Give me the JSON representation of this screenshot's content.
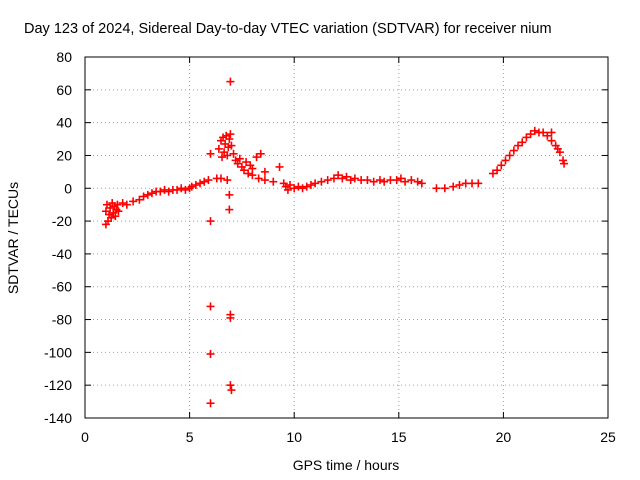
{
  "chart_data": {
    "type": "scatter",
    "title": "Day 123 of 2024, Sidereal Day-to-day VTEC variation (SDTVAR) for receiver nium",
    "xlabel": "GPS time / hours",
    "ylabel": "SDTVAR / TECUs",
    "xlim": [
      0,
      25
    ],
    "ylim": [
      -140,
      80
    ],
    "xticks": [
      0,
      5,
      10,
      15,
      20,
      25
    ],
    "yticks": [
      -140,
      -120,
      -100,
      -80,
      -60,
      -40,
      -20,
      0,
      20,
      40,
      60,
      80
    ],
    "xtick_labels": [
      "0",
      "5",
      "10",
      "15",
      "20",
      "25"
    ],
    "ytick_labels": [
      "-140",
      "-120",
      "-100",
      "-80",
      "-60",
      "-40",
      "-20",
      "0",
      "20",
      "40",
      "60",
      "80"
    ],
    "grid": true,
    "marker": "+",
    "color": "#ff0000",
    "series": [
      {
        "name": "SDTVAR",
        "points": [
          [
            1.0,
            -22
          ],
          [
            1.0,
            -14
          ],
          [
            1.05,
            -10
          ],
          [
            1.1,
            -20
          ],
          [
            1.15,
            -16
          ],
          [
            1.2,
            -12
          ],
          [
            1.25,
            -18
          ],
          [
            1.3,
            -9
          ],
          [
            1.35,
            -15
          ],
          [
            1.4,
            -11
          ],
          [
            1.45,
            -17
          ],
          [
            1.5,
            -13
          ],
          [
            1.55,
            -10
          ],
          [
            1.6,
            -14
          ],
          [
            1.8,
            -9
          ],
          [
            2.0,
            -10
          ],
          [
            2.3,
            -8
          ],
          [
            2.6,
            -7
          ],
          [
            2.8,
            -5
          ],
          [
            3.0,
            -4
          ],
          [
            3.2,
            -3
          ],
          [
            3.4,
            -2
          ],
          [
            3.6,
            -2
          ],
          [
            3.8,
            -1
          ],
          [
            4.0,
            -2
          ],
          [
            4.2,
            -1
          ],
          [
            4.4,
            -1
          ],
          [
            4.6,
            0
          ],
          [
            4.8,
            -1
          ],
          [
            5.0,
            0
          ],
          [
            5.1,
            1
          ],
          [
            5.3,
            2
          ],
          [
            5.5,
            3
          ],
          [
            5.7,
            4
          ],
          [
            5.9,
            5
          ],
          [
            6.0,
            -20
          ],
          [
            6.0,
            -72
          ],
          [
            6.0,
            -101
          ],
          [
            6.0,
            -131
          ],
          [
            6.0,
            21
          ],
          [
            6.3,
            6
          ],
          [
            6.4,
            24
          ],
          [
            6.5,
            29
          ],
          [
            6.55,
            19
          ],
          [
            6.6,
            31
          ],
          [
            6.65,
            22
          ],
          [
            6.7,
            27
          ],
          [
            6.75,
            32
          ],
          [
            6.8,
            20
          ],
          [
            6.85,
            25
          ],
          [
            6.9,
            30
          ],
          [
            6.95,
            33
          ],
          [
            7.0,
            26
          ],
          [
            6.95,
            65
          ],
          [
            6.9,
            -4
          ],
          [
            6.9,
            -13
          ],
          [
            6.95,
            -77
          ],
          [
            6.95,
            -79
          ],
          [
            6.95,
            -120
          ],
          [
            7.0,
            -123
          ],
          [
            6.5,
            6
          ],
          [
            6.8,
            5
          ],
          [
            7.1,
            21
          ],
          [
            7.2,
            17
          ],
          [
            7.3,
            15
          ],
          [
            7.4,
            18
          ],
          [
            7.5,
            13
          ],
          [
            7.6,
            11
          ],
          [
            7.7,
            16
          ],
          [
            7.8,
            9
          ],
          [
            7.9,
            14
          ],
          [
            8.0,
            12
          ],
          [
            8.2,
            19
          ],
          [
            8.4,
            21
          ],
          [
            8.6,
            10
          ],
          [
            8.0,
            8
          ],
          [
            8.3,
            6
          ],
          [
            8.6,
            5
          ],
          [
            9.0,
            4
          ],
          [
            9.3,
            13
          ],
          [
            9.5,
            3
          ],
          [
            9.6,
            1
          ],
          [
            9.7,
            -1
          ],
          [
            9.8,
            2
          ],
          [
            10.0,
            0
          ],
          [
            10.2,
            1
          ],
          [
            10.4,
            0
          ],
          [
            10.6,
            1
          ],
          [
            10.8,
            2
          ],
          [
            11.0,
            3
          ],
          [
            11.3,
            4
          ],
          [
            11.6,
            5
          ],
          [
            11.9,
            6
          ],
          [
            12.1,
            8
          ],
          [
            12.3,
            6
          ],
          [
            12.5,
            7
          ],
          [
            12.7,
            5
          ],
          [
            12.9,
            6
          ],
          [
            13.2,
            5
          ],
          [
            13.5,
            5
          ],
          [
            13.8,
            4
          ],
          [
            14.1,
            5
          ],
          [
            14.3,
            4
          ],
          [
            14.6,
            5
          ],
          [
            14.9,
            5
          ],
          [
            15.1,
            6
          ],
          [
            15.3,
            4
          ],
          [
            15.6,
            5
          ],
          [
            15.9,
            4
          ],
          [
            16.1,
            3
          ],
          [
            16.8,
            0
          ],
          [
            17.2,
            0
          ],
          [
            17.6,
            1
          ],
          [
            17.9,
            2
          ],
          [
            18.2,
            3
          ],
          [
            18.5,
            3
          ],
          [
            18.8,
            3
          ],
          [
            19.5,
            9
          ],
          [
            19.7,
            11
          ],
          [
            19.9,
            14
          ],
          [
            20.1,
            17
          ],
          [
            20.3,
            20
          ],
          [
            20.5,
            23
          ],
          [
            20.7,
            26
          ],
          [
            20.9,
            28
          ],
          [
            21.1,
            31
          ],
          [
            21.3,
            33
          ],
          [
            21.5,
            35
          ],
          [
            21.7,
            34
          ],
          [
            21.9,
            34
          ],
          [
            22.1,
            32
          ],
          [
            22.3,
            29
          ],
          [
            22.5,
            26
          ],
          [
            22.7,
            22
          ],
          [
            22.85,
            17
          ],
          [
            22.9,
            15
          ],
          [
            22.3,
            34
          ],
          [
            22.6,
            24
          ]
        ]
      }
    ]
  }
}
